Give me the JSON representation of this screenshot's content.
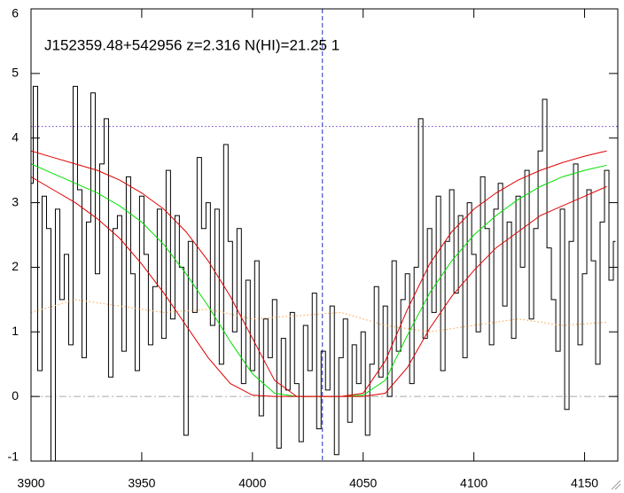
{
  "chart_data": {
    "type": "line",
    "title": "J152359.48+542956 z=2.316 N(HI)=21.25 1",
    "xlim": [
      3900,
      4165
    ],
    "ylim": [
      -1,
      6
    ],
    "xticks": [
      3900,
      3950,
      4000,
      4050,
      4100,
      4150
    ],
    "yticks": [
      -1,
      0,
      1,
      2,
      3,
      4,
      5,
      6
    ],
    "series": [
      {
        "color": "#000000",
        "drawstyle": "steps-mid",
        "dash": "solid",
        "x": [
          3900,
          3902,
          3904,
          3906,
          3908,
          3910,
          3912,
          3914,
          3916,
          3918,
          3920,
          3922,
          3924,
          3926,
          3928,
          3930,
          3932,
          3934,
          3936,
          3938,
          3940,
          3942,
          3944,
          3946,
          3948,
          3950,
          3952,
          3954,
          3956,
          3958,
          3960,
          3962,
          3964,
          3966,
          3968,
          3970,
          3972,
          3974,
          3976,
          3978,
          3980,
          3982,
          3984,
          3986,
          3988,
          3990,
          3992,
          3994,
          3996,
          3998,
          4000,
          4002,
          4004,
          4006,
          4008,
          4010,
          4012,
          4014,
          4016,
          4018,
          4020,
          4022,
          4024,
          4026,
          4028,
          4030,
          4032,
          4034,
          4036,
          4038,
          4040,
          4042,
          4044,
          4046,
          4048,
          4050,
          4052,
          4054,
          4056,
          4058,
          4060,
          4062,
          4064,
          4066,
          4068,
          4070,
          4072,
          4074,
          4076,
          4078,
          4080,
          4082,
          4084,
          4086,
          4088,
          4090,
          4092,
          4094,
          4096,
          4098,
          4100,
          4102,
          4104,
          4106,
          4108,
          4110,
          4112,
          4114,
          4116,
          4118,
          4120,
          4122,
          4124,
          4126,
          4128,
          4130,
          4132,
          4134,
          4136,
          4138,
          4140,
          4142,
          4144,
          4146,
          4148,
          4150,
          4152,
          4154,
          4156,
          4158,
          4160,
          4162,
          4164
        ],
        "values": [
          3.3,
          4.8,
          0.4,
          3.1,
          2.6,
          -1.0,
          2.9,
          1.5,
          2.2,
          0.8,
          4.8,
          3.2,
          0.6,
          2.7,
          4.7,
          1.9,
          3.6,
          4.3,
          0.3,
          2.6,
          2.8,
          0.7,
          3.4,
          1.9,
          0.4,
          3.1,
          2.2,
          0.8,
          1.7,
          2.9,
          0.9,
          3.5,
          1.2,
          2.8,
          2.0,
          -0.6,
          2.4,
          1.3,
          3.7,
          2.6,
          3.0,
          1.1,
          2.9,
          0.5,
          3.9,
          2.4,
          1.0,
          2.6,
          0.2,
          1.8,
          0.4,
          2.1,
          -0.3,
          1.2,
          0.6,
          1.5,
          -0.8,
          0.9,
          0.1,
          1.3,
          0.2,
          -0.7,
          1.1,
          0.4,
          1.6,
          -0.5,
          0.7,
          0.1,
          1.4,
          -0.9,
          0.6,
          1.2,
          -0.4,
          0.8,
          0.2,
          1.0,
          -0.6,
          0.5,
          1.7,
          0.3,
          1.4,
          0.0,
          2.1,
          0.7,
          1.5,
          1.9,
          0.2,
          2.0,
          4.3,
          0.9,
          2.6,
          1.3,
          3.1,
          0.4,
          2.4,
          3.2,
          1.6,
          2.8,
          0.6,
          3.0,
          2.2,
          1.0,
          3.4,
          2.6,
          0.8,
          2.9,
          3.3,
          1.4,
          2.7,
          0.9,
          3.1,
          2.0,
          3.5,
          1.2,
          2.6,
          3.8,
          4.6,
          2.3,
          1.5,
          0.7,
          2.9,
          -0.2,
          2.4,
          3.6,
          0.8,
          1.9,
          3.2,
          2.1,
          0.5,
          2.7,
          3.5,
          1.8,
          2.4
        ]
      },
      {
        "color": "#ffa040",
        "drawstyle": "linear",
        "dash": "dotted",
        "x": [
          3900,
          3920,
          3940,
          3960,
          3980,
          4000,
          4020,
          4040,
          4060,
          4080,
          4100,
          4120,
          4140,
          4160
        ],
        "values": [
          1.3,
          1.5,
          1.4,
          1.3,
          1.35,
          1.2,
          1.25,
          1.3,
          1.1,
          1.0,
          1.1,
          1.2,
          1.1,
          1.15
        ]
      },
      {
        "color": "#00e000",
        "drawstyle": "linear",
        "dash": "solid",
        "x": [
          3900,
          3910,
          3920,
          3930,
          3940,
          3950,
          3960,
          3970,
          3980,
          3990,
          4000,
          4010,
          4020,
          4030,
          4040,
          4050,
          4060,
          4070,
          4080,
          4090,
          4100,
          4110,
          4120,
          4130,
          4140,
          4150,
          4160
        ],
        "values": [
          3.6,
          3.45,
          3.3,
          3.15,
          2.95,
          2.7,
          2.35,
          1.9,
          1.4,
          0.85,
          0.35,
          0.05,
          0,
          0,
          0,
          0.02,
          0.25,
          0.95,
          1.6,
          2.1,
          2.5,
          2.8,
          3.05,
          3.25,
          3.4,
          3.5,
          3.58
        ]
      },
      {
        "color": "#e00000",
        "drawstyle": "linear",
        "dash": "solid",
        "x": [
          3900,
          3910,
          3920,
          3930,
          3940,
          3950,
          3960,
          3970,
          3980,
          3990,
          4000,
          4010,
          4020,
          4030,
          4040,
          4050,
          4060,
          4070,
          4080,
          4090,
          4100,
          4110,
          4120,
          4130,
          4140,
          4150,
          4160
        ],
        "values": [
          3.8,
          3.7,
          3.6,
          3.5,
          3.35,
          3.15,
          2.9,
          2.55,
          2.1,
          1.55,
          0.9,
          0.25,
          0,
          0,
          0,
          0.05,
          0.55,
          1.35,
          2.05,
          2.55,
          2.9,
          3.15,
          3.35,
          3.5,
          3.62,
          3.72,
          3.8
        ]
      },
      {
        "color": "#e00000",
        "drawstyle": "linear",
        "dash": "solid",
        "x": [
          3900,
          3910,
          3920,
          3930,
          3940,
          3950,
          3960,
          3970,
          3980,
          3990,
          4000,
          4010,
          4020,
          4030,
          4040,
          4050,
          4060,
          4070,
          4080,
          4090,
          4100,
          4110,
          4120,
          4130,
          4140,
          4150,
          4160
        ],
        "values": [
          3.4,
          3.2,
          3.0,
          2.75,
          2.45,
          2.05,
          1.6,
          1.1,
          0.6,
          0.2,
          0.02,
          0,
          0,
          0,
          0,
          0,
          0.05,
          0.45,
          1.05,
          1.55,
          1.95,
          2.3,
          2.55,
          2.8,
          2.95,
          3.1,
          3.25
        ]
      }
    ],
    "hlines": [
      {
        "value": 4.18,
        "color": "#6a3cc8",
        "dash": "dotted"
      },
      {
        "value": 0,
        "color": "#aaaaaa",
        "dash": "dashdot"
      }
    ],
    "vlines": [
      {
        "value": 4031.6,
        "color": "#2030c0",
        "dash": "dashed"
      }
    ]
  }
}
